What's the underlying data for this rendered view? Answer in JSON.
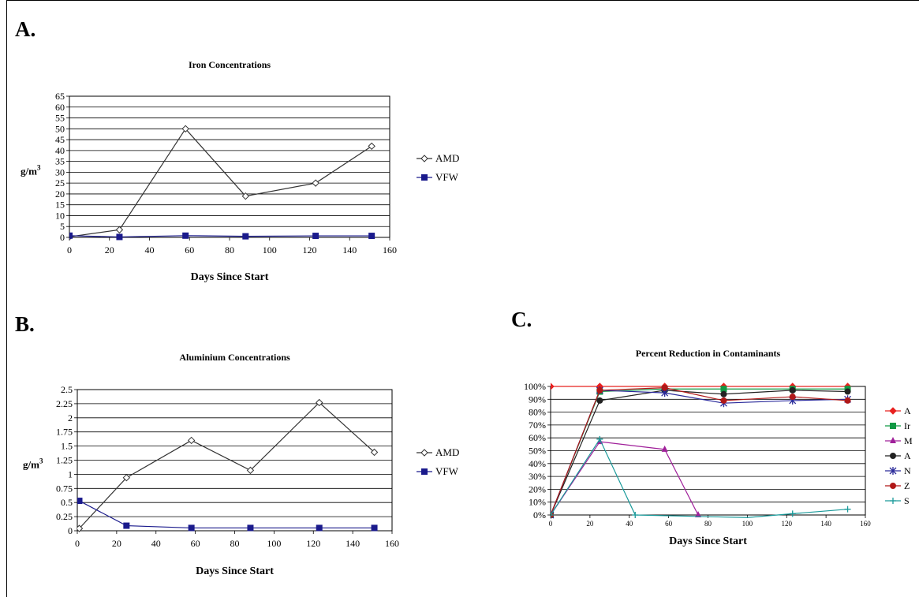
{
  "panels": {
    "a_letter": "A.",
    "b_letter": "B.",
    "c_letter": "C."
  },
  "chart_data": [
    {
      "type": "line",
      "title": "Iron Concentrations",
      "xlabel": "Days Since Start",
      "ylabel": "g/m",
      "ylabel_sup": "3",
      "xlim": [
        0,
        160
      ],
      "ylim": [
        0,
        65
      ],
      "xticks": [
        0,
        20,
        40,
        60,
        80,
        100,
        120,
        140,
        160
      ],
      "yticks": [
        0,
        5,
        10,
        15,
        20,
        25,
        30,
        35,
        40,
        45,
        50,
        55,
        60,
        65
      ],
      "grid": true,
      "legend": "right",
      "series": [
        {
          "name": "AMD",
          "color": "#333333",
          "marker": "diamond-open",
          "x": [
            0,
            25,
            58,
            88,
            123,
            151
          ],
          "y": [
            0.3,
            3.5,
            50,
            19,
            25,
            42
          ]
        },
        {
          "name": "VFW",
          "color": "#1a1a8c",
          "marker": "square",
          "x": [
            0,
            25,
            58,
            88,
            123,
            151
          ],
          "y": [
            0.8,
            0.2,
            0.8,
            0.5,
            0.7,
            0.7
          ]
        }
      ]
    },
    {
      "type": "line",
      "title": "Aluminium Concentrations",
      "xlabel": "Days Since Start",
      "ylabel": "g/m",
      "ylabel_sup": "3",
      "xlim": [
        0,
        160
      ],
      "ylim": [
        0,
        2.5
      ],
      "xticks": [
        0,
        20,
        40,
        60,
        80,
        100,
        120,
        140,
        160
      ],
      "yticks": [
        0,
        0.25,
        0.5,
        0.75,
        1,
        1.25,
        1.5,
        1.75,
        2,
        2.25,
        2.5
      ],
      "ytick_labels": [
        "0",
        "0.25",
        "0.5",
        "0.75",
        "1",
        "1.25",
        "1.5",
        "1.75",
        "2",
        "2.25",
        "2.5"
      ],
      "grid": true,
      "legend": "right",
      "series": [
        {
          "name": "AMD",
          "color": "#333333",
          "marker": "diamond-open",
          "x": [
            1,
            25,
            58,
            88,
            123,
            151
          ],
          "y": [
            0.04,
            0.94,
            1.6,
            1.07,
            2.27,
            1.39
          ]
        },
        {
          "name": "VFW",
          "color": "#1a1a8c",
          "marker": "square",
          "x": [
            1,
            25,
            58,
            88,
            123,
            151
          ],
          "y": [
            0.53,
            0.09,
            0.05,
            0.05,
            0.05,
            0.05
          ]
        }
      ]
    },
    {
      "type": "line",
      "title": "Percent Reduction in Contaminants",
      "xlabel": "Days Since Start",
      "ylabel": "",
      "xlim": [
        0,
        160
      ],
      "ylim": [
        0,
        100
      ],
      "xticks": [
        0,
        20,
        40,
        60,
        80,
        100,
        120,
        140,
        160
      ],
      "yticks": [
        0,
        10,
        20,
        30,
        40,
        50,
        60,
        70,
        80,
        90,
        100
      ],
      "ytick_suffix": "%",
      "grid": true,
      "legend": "right",
      "series": [
        {
          "name": "A",
          "color": "#e8201f",
          "marker": "diamond",
          "x": [
            0,
            25,
            58,
            88,
            123,
            151
          ],
          "y": [
            100,
            100,
            100,
            100,
            100,
            100
          ]
        },
        {
          "name": "Ir",
          "color": "#119944",
          "marker": "square",
          "x": [
            0,
            25,
            58,
            88,
            123,
            151
          ],
          "y": [
            0,
            96,
            98,
            98,
            98,
            98
          ]
        },
        {
          "name": "M",
          "color": "#a0209a",
          "marker": "triangle",
          "x": [
            0,
            25,
            58,
            75
          ],
          "y": [
            0,
            57,
            51,
            0
          ]
        },
        {
          "name": "A",
          "color": "#222222",
          "marker": "circle",
          "x": [
            0,
            25,
            58,
            88,
            123,
            151
          ],
          "y": [
            0,
            89,
            97,
            94,
            97,
            96
          ]
        },
        {
          "name": "N",
          "color": "#2a2a9a",
          "marker": "asterisk",
          "x": [
            0,
            25,
            58,
            88,
            123,
            151
          ],
          "y": [
            0,
            97,
            95,
            87,
            89,
            90
          ]
        },
        {
          "name": "Z",
          "color": "#b01818",
          "marker": "circle",
          "x": [
            0,
            25,
            58,
            88,
            123,
            151
          ],
          "y": [
            0,
            97,
            99,
            89,
            92,
            89
          ]
        },
        {
          "name": "S",
          "color": "#1a9a9a",
          "marker": "plus",
          "x": [
            0,
            25,
            43,
            100,
            123,
            151
          ],
          "y": [
            0,
            59,
            0,
            -2,
            1,
            4.5
          ]
        }
      ]
    }
  ]
}
